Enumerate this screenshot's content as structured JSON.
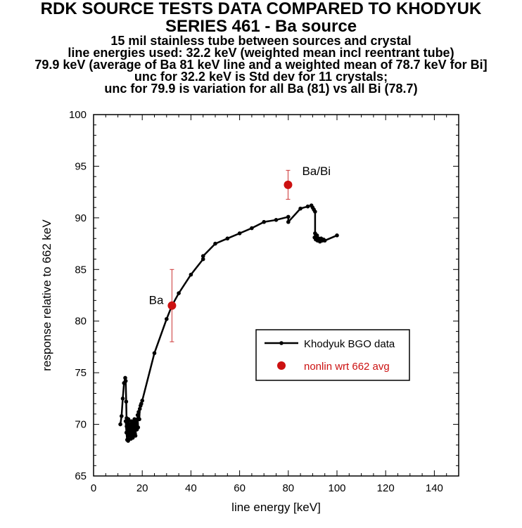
{
  "chart_data": {
    "type": "scatter",
    "title": [
      "RDK SOURCE TESTS DATA COMPARED TO KHODYUK",
      "SERIES 461 -  Ba source"
    ],
    "subtitle": [
      "15 mil stainless tube between sources and crystal",
      "line energies used:  32.2 keV (weighted mean incl  reentrant tube)",
      "79.9 keV (average of Ba 81 keV line and a weighted mean of 78.7 keV for Bi]",
      "unc for 32.2 keV is Std dev for 11 crystals;",
      "unc for 79.9 is variation for all Ba (81) vs all Bi (78.7)"
    ],
    "xlabel": "line energy [keV]",
    "ylabel": "response relative to 662 keV",
    "xlim": [
      0,
      150
    ],
    "ylim": [
      65,
      100
    ],
    "xticks": [
      0,
      20,
      40,
      60,
      80,
      100,
      120,
      140
    ],
    "yticks": [
      65,
      70,
      75,
      80,
      85,
      90,
      95,
      100
    ],
    "grid": false,
    "legend_position": "lower-right",
    "series": [
      {
        "name": "Khodyuk BGO data",
        "style": "line-with-dots",
        "color": "#000000",
        "x": [
          11.0,
          11.5,
          12.0,
          12.5,
          13.0,
          13.2,
          13.4,
          13.6,
          13.8,
          13.5,
          13.2,
          13.6,
          14.0,
          14.2,
          14.5,
          14.3,
          14.6,
          15.0,
          15.2,
          15.5,
          15.3,
          15.8,
          16.0,
          16.3,
          16.1,
          16.5,
          16.8,
          17.0,
          17.2,
          17.5,
          17.3,
          17.8,
          18.0,
          18.3,
          18.1,
          18.5,
          18.8,
          19.0,
          19.3,
          19.6,
          20.0,
          25.0,
          30.0,
          32.2,
          35.0,
          40.0,
          45.0,
          45.0,
          50.0,
          55.0,
          60.0,
          65.0,
          70.0,
          75.0,
          80.0,
          80.0,
          85.0,
          88.0,
          89.5,
          90.0,
          90.5,
          91.0,
          91.0,
          90.8,
          91.3,
          91.8,
          92.0,
          92.5,
          93.0,
          93.5,
          94.0,
          94.5,
          95.0,
          100.0
        ],
        "y": [
          70.0,
          70.8,
          72.5,
          74.0,
          74.5,
          74.2,
          72.2,
          69.8,
          68.5,
          69.2,
          70.3,
          70.6,
          69.3,
          68.4,
          69.5,
          70.5,
          70.0,
          68.9,
          69.7,
          70.3,
          68.6,
          69.2,
          70.2,
          69.8,
          68.7,
          69.4,
          70.5,
          69.1,
          68.9,
          69.8,
          70.4,
          69.5,
          70.5,
          69.7,
          70.9,
          71.2,
          70.5,
          71.5,
          71.8,
          72.0,
          72.3,
          76.9,
          80.2,
          81.5,
          82.7,
          84.5,
          86.0,
          86.3,
          87.5,
          88.0,
          88.5,
          89.0,
          89.6,
          89.8,
          90.1,
          89.6,
          90.9,
          91.1,
          91.2,
          91.0,
          90.8,
          90.6,
          88.5,
          88.1,
          87.9,
          88.3,
          87.8,
          88.0,
          87.7,
          88.0,
          87.8,
          87.9,
          87.8,
          88.3
        ]
      },
      {
        "name": "nonlin wrt 662 avg",
        "style": "marker",
        "color": "#cc1111",
        "points": [
          {
            "x": 32.2,
            "y": 81.5,
            "err": 3.5,
            "label": "Ba"
          },
          {
            "x": 79.9,
            "y": 93.2,
            "err": 1.4,
            "label": "Ba/Bi"
          }
        ]
      }
    ]
  }
}
